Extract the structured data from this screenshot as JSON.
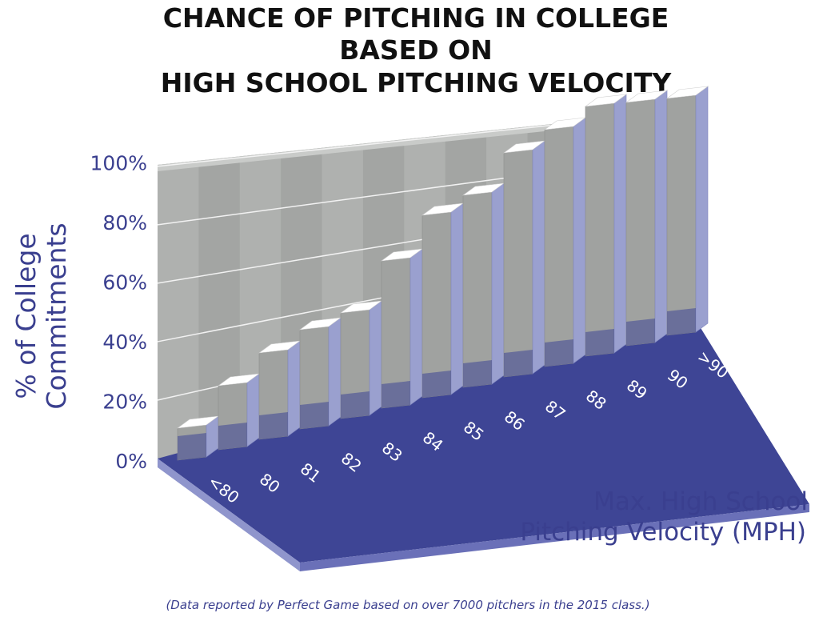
{
  "colors": {
    "floor": "#3e4595",
    "floor_edge": "#8f95cc",
    "wall": "#a3a5a3",
    "wall_stripe": "#b3b5b3",
    "bar_front": "#a0a2a0",
    "bar_side": "#9aa0cf",
    "bar_top": "#ffffff",
    "text_accent": "#3a3f8f"
  },
  "chart_data": {
    "type": "bar",
    "title": [
      "CHANCE OF PITCHING IN COLLEGE",
      "BASED ON",
      "HIGH SCHOOL PITCHING VELOCITY"
    ],
    "ylabel": [
      "% of College",
      "Commitments"
    ],
    "xlabel": [
      "Max. High School",
      "Pitching Velocity (MPH)"
    ],
    "categories": [
      "<80",
      "80",
      "81",
      "82",
      "83",
      "84",
      "85",
      "86",
      "87",
      "88",
      "89",
      "90",
      ">90"
    ],
    "values": [
      10,
      20,
      27,
      31,
      33,
      46,
      57,
      60,
      70,
      74,
      78,
      76,
      74
    ],
    "y_ticks": [
      "0%",
      "20%",
      "40%",
      "60%",
      "80%",
      "100%"
    ],
    "ylim": [
      0,
      100
    ],
    "footnote": "(Data reported by Perfect Game based on over 7000 pitchers in the 2015 class.)"
  }
}
